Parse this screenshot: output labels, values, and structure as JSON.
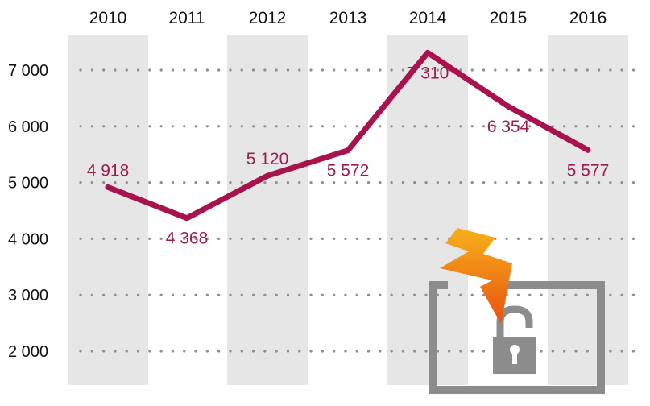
{
  "chart_data": {
    "type": "line",
    "x": [
      "2010",
      "2011",
      "2012",
      "2013",
      "2014",
      "2015",
      "2016"
    ],
    "series": [
      {
        "values": [
          4918,
          4368,
          5120,
          5572,
          7310,
          6354,
          5577
        ],
        "labels": [
          "4 918",
          "4 368",
          "5 120",
          "5 572",
          "7 310",
          "6 354",
          "5 577"
        ]
      }
    ],
    "yticks": [
      2000,
      3000,
      4000,
      5000,
      6000,
      7000
    ],
    "ytick_labels": [
      "2 000",
      "3 000",
      "4 000",
      "5 000",
      "6 000",
      "7 000"
    ],
    "ylim": [
      1500,
      7700
    ],
    "grid": "horizontal dotted",
    "xaxis_position": "top",
    "column_shading": "alternating"
  },
  "colors": {
    "line": "#a8134f",
    "label": "#9c1c52",
    "band": "#e6e6e6",
    "grid": "#8f8f8f",
    "lock_frame": "#8c8c8c",
    "lock_body": "#8c8c8c",
    "bolt_top": "#f6b21b",
    "bolt_bottom": "#ea4f10"
  },
  "icons": {
    "lock": "broken-padlock-icon",
    "bolt": "lightning-bolt-icon"
  }
}
